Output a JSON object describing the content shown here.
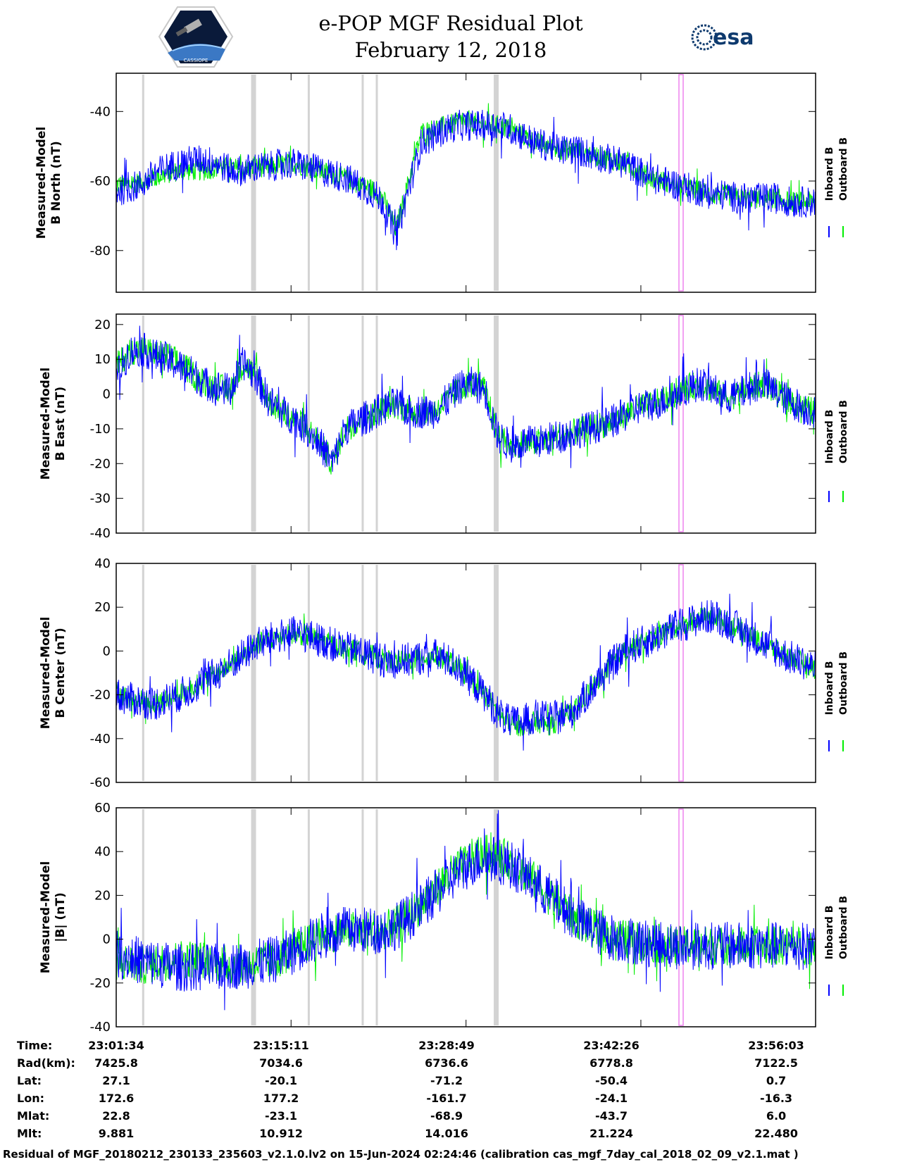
{
  "header": {
    "title": "e-POP MGF Residual Plot",
    "date": "February 12, 2018",
    "cassiope_logo_text": "CASSIOPE",
    "esa_logo_text": "esa"
  },
  "colors": {
    "inboard": "#0000ff",
    "outboard": "#00ee00",
    "gap_band": "#d3d3d3",
    "marker_band": "#ee82ee"
  },
  "legend": {
    "inboard_label": "Inboard B",
    "outboard_label": "Outboard B"
  },
  "chart_data": [
    {
      "type": "line",
      "title": "",
      "ylabel_line1": "Measured-Model",
      "ylabel_line2": "B North (nT)",
      "ylim": [
        -92,
        -29
      ],
      "yticks": [
        "-40",
        "-60",
        "-80"
      ],
      "ytick_values": [
        -40,
        -60,
        -80
      ],
      "x": [
        0,
        1,
        2,
        3,
        4,
        5,
        6,
        7,
        8,
        9,
        10,
        11,
        12,
        13,
        14,
        15,
        16,
        17,
        18,
        19,
        20,
        21,
        22,
        23,
        24,
        25,
        26,
        27,
        28,
        29,
        30,
        31,
        32,
        33,
        34,
        35,
        36,
        37,
        38,
        39,
        40,
        41,
        42,
        43,
        44,
        45,
        46,
        47,
        48,
        49,
        50,
        51,
        52,
        53,
        54,
        55
      ],
      "series": [
        {
          "name": "Inboard B",
          "values": [
            -63,
            -62,
            -61,
            -58,
            -56,
            -55,
            -54,
            -54,
            -55,
            -57,
            -57,
            -56,
            -56,
            -55,
            -55,
            -56,
            -57,
            -58,
            -59,
            -61,
            -63,
            -66,
            -76,
            -62,
            -49,
            -47,
            -45,
            -44,
            -44,
            -44,
            -44,
            -45,
            -47,
            -49,
            -50,
            -51,
            -51,
            -52,
            -53,
            -54,
            -55,
            -57,
            -59,
            -60,
            -61,
            -62,
            -63,
            -64,
            -64,
            -65,
            -65,
            -65,
            -65,
            -66,
            -66,
            -66
          ],
          "band": 4.5
        },
        {
          "name": "Outboard B",
          "values": [
            -61,
            -61,
            -60,
            -59,
            -58,
            -57,
            -57,
            -57,
            -56,
            -56,
            -57,
            -56,
            -56,
            -55,
            -55,
            -56,
            -57,
            -58,
            -59,
            -61,
            -62,
            -65,
            -74,
            -60,
            -46,
            -45,
            -44,
            -43,
            -43,
            -44,
            -44,
            -45,
            -47,
            -49,
            -50,
            -51,
            -51,
            -52,
            -53,
            -54,
            -55,
            -57,
            -59,
            -60,
            -61,
            -62,
            -63,
            -64,
            -64,
            -65,
            -65,
            -65,
            -65,
            -66,
            -66,
            -66
          ],
          "band": 3
        }
      ]
    },
    {
      "type": "line",
      "title": "",
      "ylabel_line1": "Measured-Model",
      "ylabel_line2": "B East (nT)",
      "ylim": [
        -40,
        23
      ],
      "yticks": [
        "20",
        "10",
        "0",
        "-10",
        "-20",
        "-30",
        "-40"
      ],
      "ytick_values": [
        20,
        10,
        0,
        -10,
        -20,
        -30,
        -40
      ],
      "x": [
        0,
        1,
        2,
        3,
        4,
        5,
        6,
        7,
        8,
        9,
        10,
        11,
        12,
        13,
        14,
        15,
        16,
        17,
        18,
        19,
        20,
        21,
        22,
        23,
        24,
        25,
        26,
        27,
        28,
        29,
        30,
        31,
        32,
        33,
        34,
        35,
        36,
        37,
        38,
        39,
        40,
        41,
        42,
        43,
        44,
        45,
        46,
        47,
        48,
        49,
        50,
        51,
        52,
        53,
        54,
        55
      ],
      "series": [
        {
          "name": "Inboard B",
          "values": [
            5,
            12,
            13,
            11,
            10,
            8,
            6,
            3,
            2,
            1,
            9,
            5,
            -2,
            -5,
            -7,
            -10,
            -14,
            -20,
            -10,
            -8,
            -6,
            -4,
            -3,
            -5,
            -5,
            -5,
            -2,
            2,
            3,
            1,
            -12,
            -15,
            -14,
            -14,
            -13,
            -12,
            -11,
            -10,
            -9,
            -8,
            -6,
            -4,
            -3,
            -2,
            0,
            2,
            3,
            1,
            -1,
            0,
            2,
            3,
            0,
            -2,
            -4,
            -5
          ],
          "band": 5
        },
        {
          "name": "Outboard B",
          "values": [
            8,
            12,
            13,
            12,
            11,
            9,
            6,
            3,
            2,
            1,
            9,
            5,
            -2,
            -5,
            -7,
            -10,
            -14,
            -20,
            -10,
            -8,
            -6,
            -4,
            -3,
            -5,
            -5,
            -5,
            -2,
            2,
            3,
            1,
            -12,
            -15,
            -14,
            -14,
            -13,
            -12,
            -11,
            -10,
            -9,
            -8,
            -6,
            -4,
            -3,
            -2,
            0,
            2,
            3,
            1,
            -1,
            0,
            2,
            3,
            0,
            -2,
            -4,
            -5
          ],
          "band": 4
        }
      ]
    },
    {
      "type": "line",
      "title": "",
      "ylabel_line1": "Measured-Model",
      "ylabel_line2": "B Center (nT)",
      "ylim": [
        -60,
        40
      ],
      "yticks": [
        "40",
        "20",
        "0",
        "-20",
        "-40",
        "-60"
      ],
      "ytick_values": [
        40,
        20,
        0,
        -20,
        -40,
        -60
      ],
      "x": [
        0,
        1,
        2,
        3,
        4,
        5,
        6,
        7,
        8,
        9,
        10,
        11,
        12,
        13,
        14,
        15,
        16,
        17,
        18,
        19,
        20,
        21,
        22,
        23,
        24,
        25,
        26,
        27,
        28,
        29,
        30,
        31,
        32,
        33,
        34,
        35,
        36,
        37,
        38,
        39,
        40,
        41,
        42,
        43,
        44,
        45,
        46,
        47,
        48,
        49,
        50,
        51,
        52,
        53,
        54,
        55
      ],
      "series": [
        {
          "name": "Inboard B",
          "values": [
            -20,
            -22,
            -23,
            -24,
            -22,
            -20,
            -17,
            -13,
            -10,
            -6,
            -2,
            3,
            5,
            7,
            8,
            7,
            5,
            3,
            1,
            0,
            -2,
            -4,
            -5,
            -4,
            -3,
            -2,
            -4,
            -8,
            -14,
            -20,
            -28,
            -33,
            -32,
            -30,
            -31,
            -30,
            -27,
            -20,
            -13,
            -6,
            0,
            3,
            5,
            8,
            11,
            13,
            15,
            16,
            13,
            10,
            7,
            3,
            0,
            -3,
            -5,
            -8
          ],
          "band": 8
        },
        {
          "name": "Outboard B",
          "values": [
            -18,
            -22,
            -23,
            -24,
            -22,
            -20,
            -17,
            -13,
            -10,
            -6,
            -2,
            3,
            5,
            7,
            8,
            7,
            5,
            3,
            1,
            0,
            -2,
            -4,
            -5,
            -4,
            -3,
            -2,
            -4,
            -8,
            -14,
            -20,
            -28,
            -34,
            -34,
            -32,
            -34,
            -31,
            -27,
            -20,
            -13,
            -6,
            0,
            3,
            5,
            8,
            11,
            13,
            15,
            16,
            13,
            10,
            7,
            3,
            0,
            -3,
            -5,
            -8
          ],
          "band": 5
        }
      ]
    },
    {
      "type": "line",
      "title": "",
      "ylabel_line1": "Measured-Model",
      "ylabel_line2": "|B| (nT)",
      "ylim": [
        -40,
        60
      ],
      "yticks": [
        "60",
        "40",
        "20",
        "0",
        "-20",
        "-40"
      ],
      "ytick_values": [
        60,
        40,
        20,
        0,
        -20,
        -40
      ],
      "x": [
        0,
        1,
        2,
        3,
        4,
        5,
        6,
        7,
        8,
        9,
        10,
        11,
        12,
        13,
        14,
        15,
        16,
        17,
        18,
        19,
        20,
        21,
        22,
        23,
        24,
        25,
        26,
        27,
        28,
        29,
        30,
        31,
        32,
        33,
        34,
        35,
        36,
        37,
        38,
        39,
        40,
        41,
        42,
        43,
        44,
        45,
        46,
        47,
        48,
        49,
        50,
        51,
        52,
        53,
        54,
        55
      ],
      "series": [
        {
          "name": "Inboard B",
          "values": [
            -7,
            -8,
            -10,
            -11,
            -12,
            -13,
            -13,
            -13,
            -13,
            -12,
            -12,
            -11,
            -10,
            -8,
            -5,
            -2,
            1,
            3,
            4,
            4,
            4,
            4,
            6,
            10,
            15,
            20,
            26,
            31,
            35,
            37,
            36,
            34,
            30,
            25,
            20,
            15,
            10,
            6,
            3,
            1,
            0,
            -1,
            -2,
            -2,
            -3,
            -3,
            -3,
            -3,
            -3,
            -3,
            -3,
            -3,
            -3,
            -3,
            -3,
            -3
          ],
          "band": 11
        },
        {
          "name": "Outboard B",
          "values": [
            -10,
            -11,
            -12,
            -11,
            -10,
            -9,
            -9,
            -10,
            -11,
            -12,
            -12,
            -11,
            -10,
            -8,
            -5,
            -2,
            1,
            3,
            4,
            4,
            4,
            4,
            6,
            10,
            16,
            22,
            28,
            33,
            37,
            39,
            38,
            36,
            31,
            26,
            20,
            15,
            10,
            6,
            3,
            1,
            0,
            -1,
            -2,
            -2,
            -3,
            -3,
            -3,
            -3,
            -3,
            -3,
            -3,
            -3,
            -3,
            -3,
            -3,
            -3
          ],
          "band": 9
        }
      ]
    }
  ],
  "gap_bands_minutes": [
    2.1,
    10.7,
    15.0,
    19.2,
    20.3,
    29.6
  ],
  "marker_band_minutes": 44.0,
  "time_axis": {
    "span_minutes": 54.48,
    "tick_minutes": [
      0,
      13.62,
      27.25,
      40.87,
      54.48
    ]
  },
  "info_table": {
    "row_labels": [
      "Time:",
      "Rad(km):",
      "Lat:",
      "Lon:",
      "Mlat:",
      "Mlt:"
    ],
    "columns": [
      [
        "23:01:34",
        "7425.8",
        "27.1",
        "172.6",
        "22.8",
        "9.881"
      ],
      [
        "23:15:11",
        "7034.6",
        "-20.1",
        "177.2",
        "-23.1",
        "10.912"
      ],
      [
        "23:28:49",
        "6736.6",
        "-71.2",
        "-161.7",
        "-68.9",
        "14.016"
      ],
      [
        "23:42:26",
        "6778.8",
        "-50.4",
        "-24.1",
        "-43.7",
        "21.224"
      ],
      [
        "23:56:03",
        "7122.5",
        "0.7",
        "-16.3",
        "6.0",
        "22.480"
      ]
    ]
  },
  "footer": "Residual of MGF_20180212_230133_235603_v2.1.0.lv2 on 15-Jun-2024 02:24:46 (calibration cas_mgf_7day_cal_2018_02_09_v2.1.mat )"
}
